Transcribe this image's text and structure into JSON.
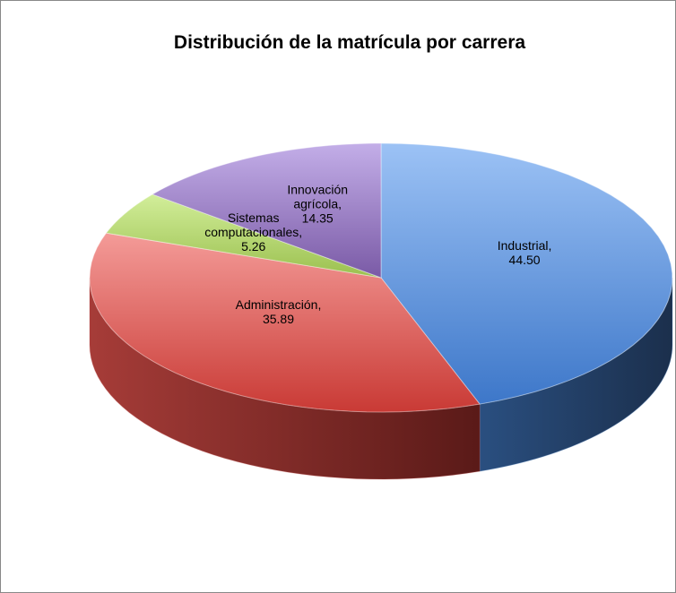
{
  "chart_data": {
    "type": "pie3d",
    "title": "Distribución de la matrícula por carrera",
    "categories": [
      "Industrial",
      "Administración",
      "Sistemas computacionales",
      "Innovación agrícola"
    ],
    "values": [
      44.5,
      35.89,
      5.26,
      14.35
    ],
    "value_labels": [
      "44.50",
      "35.89",
      "5.26",
      "14.35"
    ],
    "label_separator": ",",
    "colors": [
      "#4f81bd",
      "#c0504d",
      "#9bbb59",
      "#8064a2"
    ]
  }
}
